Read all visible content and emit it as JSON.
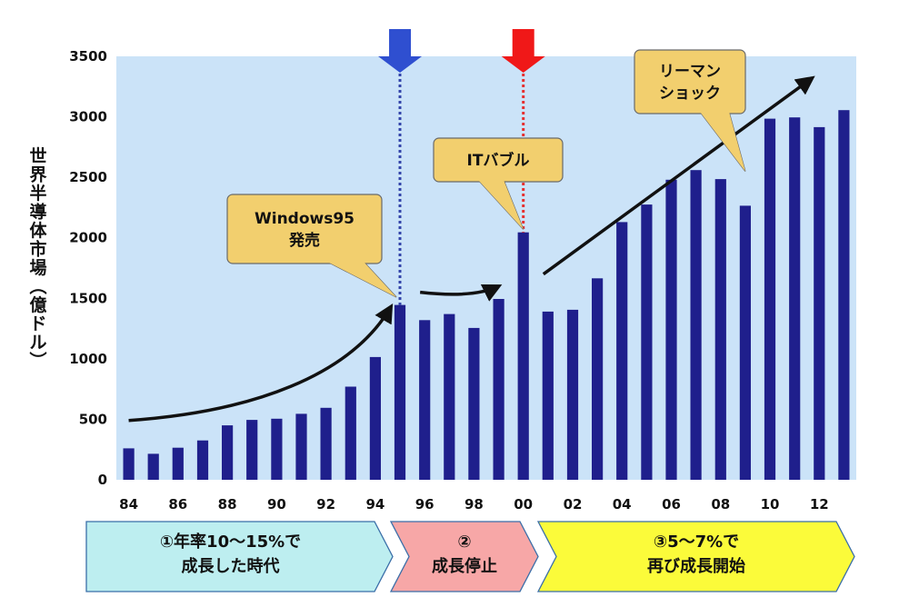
{
  "chart_data": {
    "type": "bar",
    "ylabel": "世界半導体市場（億ドル）",
    "ylim": [
      0,
      3500
    ],
    "yticks": [
      0,
      500,
      1000,
      1500,
      2000,
      2500,
      3000,
      3500
    ],
    "grid": false,
    "categories": [
      "84",
      "85",
      "86",
      "87",
      "88",
      "89",
      "90",
      "91",
      "92",
      "93",
      "94",
      "95",
      "96",
      "97",
      "98",
      "99",
      "00",
      "01",
      "02",
      "03",
      "04",
      "05",
      "06",
      "07",
      "08",
      "09",
      "10",
      "11",
      "12",
      "13"
    ],
    "xtick_labels": [
      "84",
      "86",
      "88",
      "90",
      "92",
      "94",
      "96",
      "98",
      "00",
      "02",
      "04",
      "06",
      "08",
      "10",
      "12"
    ],
    "values": [
      260,
      215,
      265,
      325,
      450,
      495,
      505,
      545,
      595,
      770,
      1015,
      1445,
      1320,
      1370,
      1255,
      1495,
      2045,
      1390,
      1405,
      1665,
      2130,
      2275,
      2480,
      2560,
      2485,
      2265,
      2985,
      2995,
      2915,
      3055
    ],
    "colors": {
      "bar": "#1f1f8c",
      "plot_bg": "#cbe3f8",
      "callout": "#f2cf6e",
      "callout_border": "#6a6a6a",
      "marker_blue": "#2f4fd0",
      "marker_red": "#f01818",
      "phase1": "#bdeef0",
      "phase2": "#f7a7a7",
      "phase3": "#fbfb3a"
    },
    "markers": [
      {
        "category": "95",
        "color": "blue"
      },
      {
        "category": "00",
        "color": "red"
      }
    ],
    "annotations": [
      {
        "lines": [
          "Windows95",
          "発売"
        ],
        "target_category": "95"
      },
      {
        "lines": [
          "ITバブル"
        ],
        "target_category": "00"
      },
      {
        "lines": [
          "リーマン",
          "ショック"
        ],
        "target_category": "09"
      }
    ],
    "phases": [
      {
        "lines": [
          "①年率10～15%で",
          "成長した時代"
        ],
        "from": "84",
        "to": "95"
      },
      {
        "lines": [
          "②",
          "成長停止"
        ],
        "from": "95",
        "to": "00"
      },
      {
        "lines": [
          "③5～7%で",
          "再び成長開始"
        ],
        "from": "00",
        "to": "13"
      }
    ]
  }
}
